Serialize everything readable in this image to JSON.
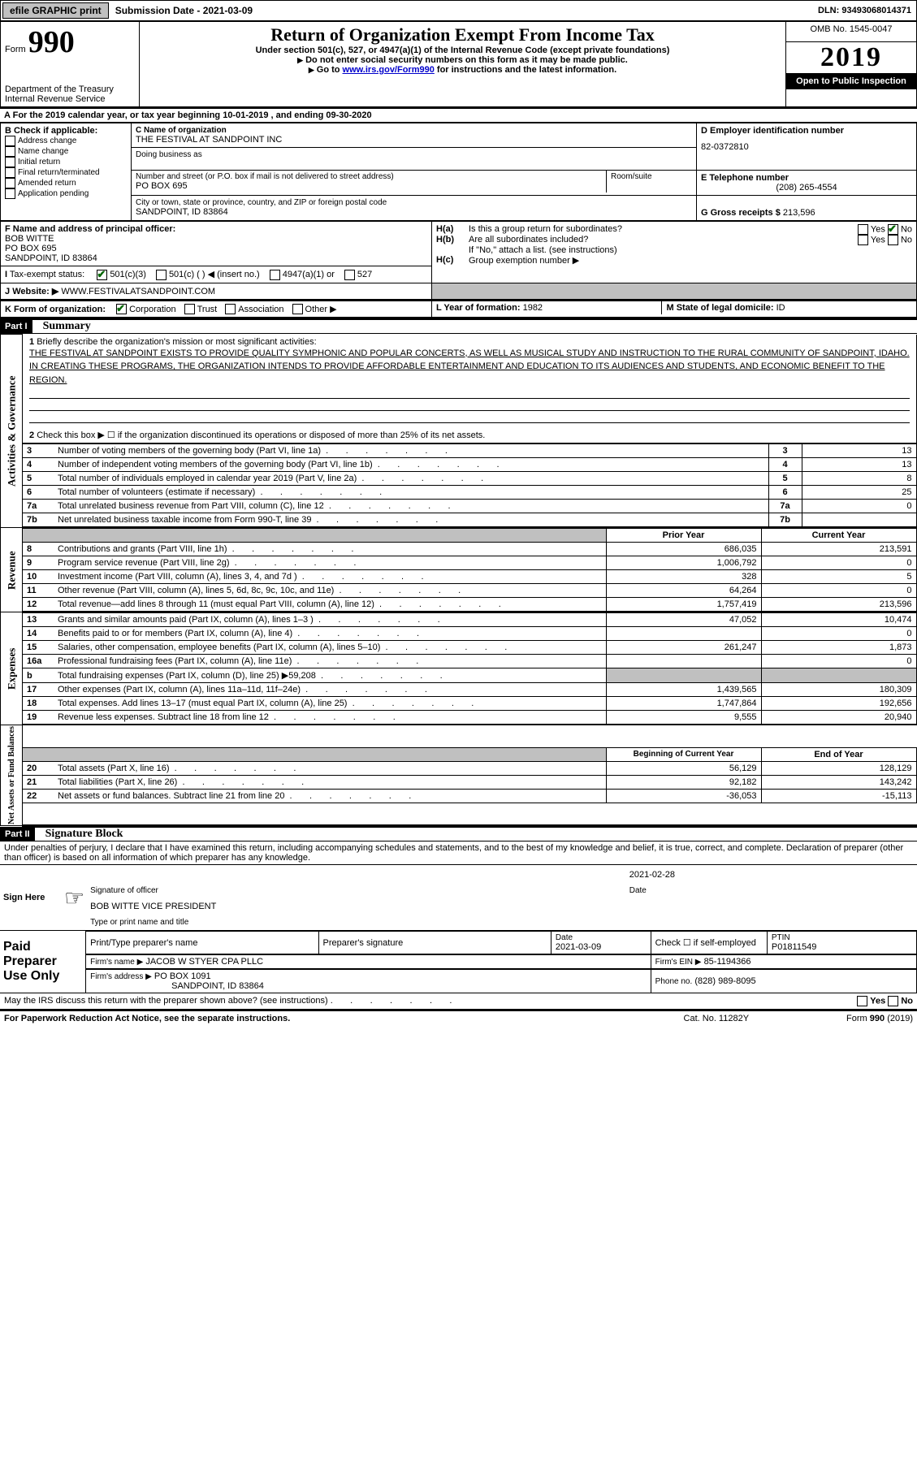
{
  "topbar": {
    "efile": "efile GRAPHIC print",
    "submission_label": "Submission Date - 2021-03-09",
    "dln": "DLN: 93493068014371"
  },
  "header": {
    "form_prefix": "Form",
    "form_number": "990",
    "dept": "Department of the Treasury\nInternal Revenue Service",
    "title": "Return of Organization Exempt From Income Tax",
    "subtitle": "Under section 501(c), 527, or 4947(a)(1) of the Internal Revenue Code (except private foundations)",
    "do_not": "Do not enter social security numbers on this form as it may be made public.",
    "go_to_prefix": "Go to ",
    "go_to_link": "www.irs.gov/Form990",
    "go_to_suffix": " for instructions and the latest information.",
    "omb": "OMB No. 1545-0047",
    "year": "2019",
    "open_inspection": "Open to Public Inspection"
  },
  "line_a": "For the 2019 calendar year, or tax year beginning 10-01-2019   , and ending 09-30-2020",
  "section_b": {
    "label": "B Check if applicable:",
    "items": [
      "Address change",
      "Name change",
      "Initial return",
      "Final return/terminated",
      "Amended return",
      "Application pending"
    ]
  },
  "section_c": {
    "c_label": "C Name of organization",
    "org_name": "THE FESTIVAL AT SANDPOINT INC",
    "dba_label": "Doing business as",
    "street_label": "Number and street (or P.O. box if mail is not delivered to street address)",
    "street": "PO BOX 695",
    "room_label": "Room/suite",
    "city_label": "City or town, state or province, country, and ZIP or foreign postal code",
    "city": "SANDPOINT, ID  83864"
  },
  "section_d": {
    "label": "D Employer identification number",
    "ein": "82-0372810"
  },
  "section_e": {
    "label": "E Telephone number",
    "phone": "(208) 265-4554"
  },
  "section_g": {
    "label": "G Gross receipts $",
    "value": "213,596"
  },
  "section_f": {
    "label": "F Name and address of principal officer:",
    "name": "BOB WITTE",
    "addr1": "PO BOX 695",
    "addr2": "SANDPOINT, ID  83864"
  },
  "section_h": {
    "ha_label": "Is this a group return for subordinates?",
    "hb_label": "Are all subordinates included?",
    "hb_note": "If \"No,\" attach a list. (see instructions)",
    "hc_label": "Group exemption number ▶"
  },
  "section_i": {
    "label": "Tax-exempt status:",
    "opts": [
      "501(c)(3)",
      "501(c) (  ) ◀ (insert no.)",
      "4947(a)(1) or",
      "527"
    ]
  },
  "section_j": {
    "label": "Website: ▶",
    "value": "WWW.FESTIVALATSANDPOINT.COM"
  },
  "section_k": {
    "label": "K Form of organization:",
    "opts": [
      "Corporation",
      "Trust",
      "Association",
      "Other ▶"
    ]
  },
  "section_l": {
    "label": "L Year of formation:",
    "value": "1982"
  },
  "section_m": {
    "label": "M State of legal domicile:",
    "value": "ID"
  },
  "parts": {
    "part1_label": "Part I",
    "part1_title": "Summary",
    "part2_label": "Part II",
    "part2_title": "Signature Block"
  },
  "summary": {
    "line1_label": "Briefly describe the organization's mission or most significant activities:",
    "line1_text": "THE FESTIVAL AT SANDPOINT EXISTS TO PROVIDE QUALITY SYMPHONIC AND POPULAR CONCERTS, AS WELL AS MUSICAL STUDY AND INSTRUCTION TO THE RURAL COMMUNITY OF SANDPOINT, IDAHO. IN CREATING THESE PROGRAMS, THE ORGANIZATION INTENDS TO PROVIDE AFFORDABLE ENTERTAINMENT AND EDUCATION TO ITS AUDIENCES AND STUDENTS, AND ECONOMIC BENEFIT TO THE REGION.",
    "line2": "Check this box ▶ ☐ if the organization discontinued its operations or disposed of more than 25% of its net assets.",
    "governance_rows": [
      {
        "n": "3",
        "label": "Number of voting members of the governing body (Part VI, line 1a)",
        "val": "13"
      },
      {
        "n": "4",
        "label": "Number of independent voting members of the governing body (Part VI, line 1b)",
        "val": "13"
      },
      {
        "n": "5",
        "label": "Total number of individuals employed in calendar year 2019 (Part V, line 2a)",
        "val": "8"
      },
      {
        "n": "6",
        "label": "Total number of volunteers (estimate if necessary)",
        "val": "25"
      },
      {
        "n": "7a",
        "label": "Total unrelated business revenue from Part VIII, column (C), line 12",
        "val": "0"
      },
      {
        "n": "7b",
        "label": "Net unrelated business taxable income from Form 990-T, line 39",
        "val": ""
      }
    ],
    "prior_year": "Prior Year",
    "current_year": "Current Year",
    "revenue_rows": [
      {
        "n": "8",
        "label": "Contributions and grants (Part VIII, line 1h)",
        "py": "686,035",
        "cy": "213,591"
      },
      {
        "n": "9",
        "label": "Program service revenue (Part VIII, line 2g)",
        "py": "1,006,792",
        "cy": "0"
      },
      {
        "n": "10",
        "label": "Investment income (Part VIII, column (A), lines 3, 4, and 7d )",
        "py": "328",
        "cy": "5"
      },
      {
        "n": "11",
        "label": "Other revenue (Part VIII, column (A), lines 5, 6d, 8c, 9c, 10c, and 11e)",
        "py": "64,264",
        "cy": "0"
      },
      {
        "n": "12",
        "label": "Total revenue—add lines 8 through 11 (must equal Part VIII, column (A), line 12)",
        "py": "1,757,419",
        "cy": "213,596"
      }
    ],
    "expense_rows": [
      {
        "n": "13",
        "label": "Grants and similar amounts paid (Part IX, column (A), lines 1–3 )",
        "py": "47,052",
        "cy": "10,474"
      },
      {
        "n": "14",
        "label": "Benefits paid to or for members (Part IX, column (A), line 4)",
        "py": "",
        "cy": "0"
      },
      {
        "n": "15",
        "label": "Salaries, other compensation, employee benefits (Part IX, column (A), lines 5–10)",
        "py": "261,247",
        "cy": "1,873"
      },
      {
        "n": "16a",
        "label": "Professional fundraising fees (Part IX, column (A), line 11e)",
        "py": "",
        "cy": "0"
      },
      {
        "n": "b",
        "label": "Total fundraising expenses (Part IX, column (D), line 25) ▶59,208",
        "py": "grey",
        "cy": "grey"
      },
      {
        "n": "17",
        "label": "Other expenses (Part IX, column (A), lines 11a–11d, 11f–24e)",
        "py": "1,439,565",
        "cy": "180,309"
      },
      {
        "n": "18",
        "label": "Total expenses. Add lines 13–17 (must equal Part IX, column (A), line 25)",
        "py": "1,747,864",
        "cy": "192,656"
      },
      {
        "n": "19",
        "label": "Revenue less expenses. Subtract line 18 from line 12",
        "py": "9,555",
        "cy": "20,940"
      }
    ],
    "boy": "Beginning of Current Year",
    "eoy": "End of Year",
    "balance_rows": [
      {
        "n": "20",
        "label": "Total assets (Part X, line 16)",
        "py": "56,129",
        "cy": "128,129"
      },
      {
        "n": "21",
        "label": "Total liabilities (Part X, line 26)",
        "py": "92,182",
        "cy": "143,242"
      },
      {
        "n": "22",
        "label": "Net assets or fund balances. Subtract line 21 from line 20",
        "py": "-36,053",
        "cy": "-15,113"
      }
    ],
    "side_labels": {
      "gov": "Activities & Governance",
      "rev": "Revenue",
      "exp": "Expenses",
      "bal": "Net Assets or Fund Balances"
    }
  },
  "signature": {
    "declaration": "Under penalties of perjury, I declare that I have examined this return, including accompanying schedules and statements, and to the best of my knowledge and belief, it is true, correct, and complete. Declaration of preparer (other than officer) is based on all information of which preparer has any knowledge.",
    "sign_here": "Sign Here",
    "sig_officer_label": "Signature of officer",
    "sig_date": "2021-02-28",
    "date_label": "Date",
    "typed_name": "BOB WITTE  VICE PRESIDENT",
    "typed_label": "Type or print name and title",
    "paid_preparer": "Paid Preparer Use Only",
    "print_prep_label": "Print/Type preparer's name",
    "prep_sig_label": "Preparer's signature",
    "prep_date_label": "Date",
    "prep_date": "2021-03-09",
    "check_if": "Check ☐ if self-employed",
    "ptin_label": "PTIN",
    "ptin": "P01811549",
    "firm_name_label": "Firm's name    ▶",
    "firm_name": "JACOB W STYER CPA PLLC",
    "firm_ein_label": "Firm's EIN ▶",
    "firm_ein": "85-1194366",
    "firm_addr_label": "Firm's address ▶",
    "firm_addr1": "PO BOX 1091",
    "firm_addr2": "SANDPOINT, ID  83864",
    "phone_label": "Phone no.",
    "phone": "(828) 989-8095"
  },
  "footer": {
    "discuss": "May the IRS discuss this return with the preparer shown above? (see instructions)",
    "paperwork": "For Paperwork Reduction Act Notice, see the separate instructions.",
    "cat": "Cat. No. 11282Y",
    "form": "Form 990 (2019)"
  }
}
